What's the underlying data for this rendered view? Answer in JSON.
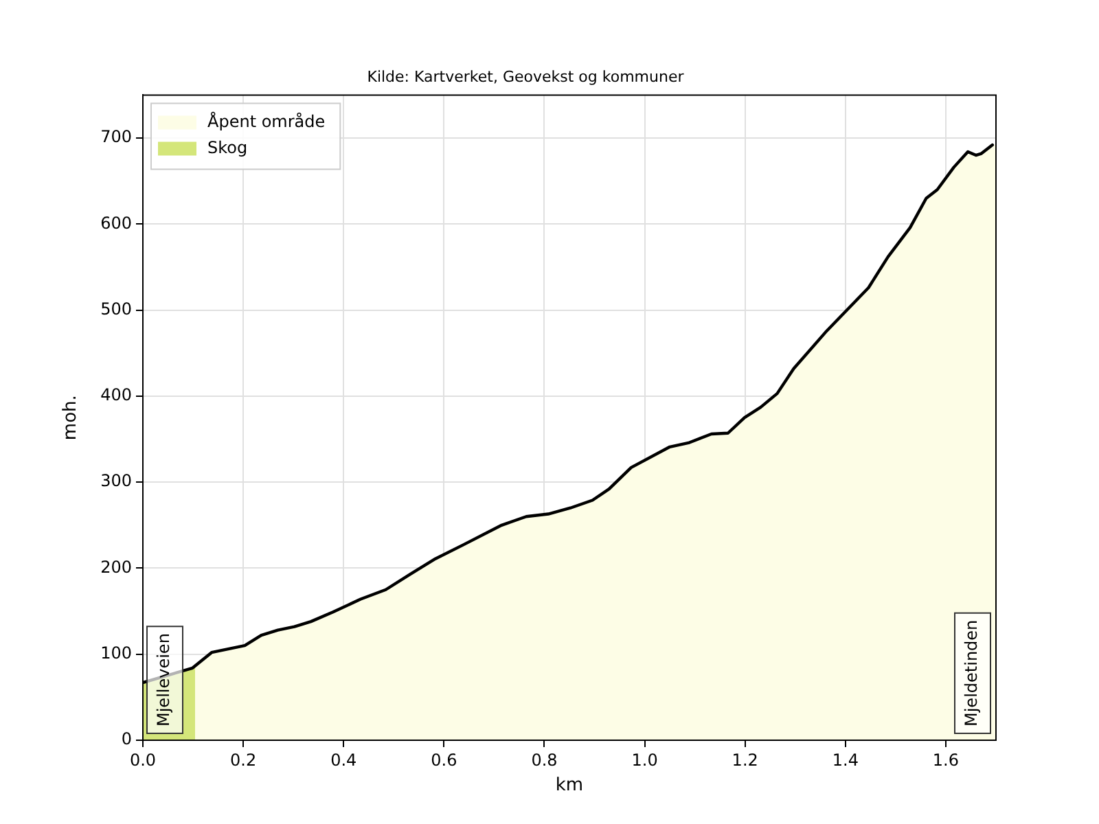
{
  "chart_data": {
    "type": "area",
    "title": "Kilde: Kartverket, Geovekst og kommuner",
    "xlabel": "km",
    "ylabel": "moh.",
    "xlim": [
      0,
      1.7
    ],
    "xticks": [
      {
        "value": 0,
        "label": "0.0"
      },
      0.2,
      0.4,
      0.6,
      0.8,
      {
        "value": 1,
        "label": "1.0"
      },
      1.2,
      1.4,
      1.6
    ],
    "ylim": [
      0,
      750
    ],
    "yticks": [
      0,
      100,
      200,
      300,
      400,
      500,
      600,
      700
    ],
    "grid": true,
    "legend": "top left",
    "series": [
      {
        "name": "Åpent område",
        "color": "#fdfde6",
        "x": [
          0.104,
          0.137,
          0.17,
          0.203,
          0.236,
          0.269,
          0.302,
          0.335,
          0.379,
          0.434,
          0.484,
          0.533,
          0.583,
          0.638,
          0.715,
          0.764,
          0.808,
          0.852,
          0.896,
          0.929,
          0.973,
          1.05,
          1.089,
          1.133,
          1.166,
          1.199,
          1.231,
          1.264,
          1.297,
          1.363,
          1.446,
          1.485,
          1.529,
          1.561,
          1.583,
          1.616,
          1.644,
          1.66,
          1.671,
          1.693,
          1.7
        ],
        "values": [
          86,
          102,
          106,
          110,
          122,
          128,
          132,
          138,
          149,
          164,
          175,
          193,
          211,
          227,
          250,
          260,
          263,
          270,
          279,
          292,
          317,
          341,
          346,
          356,
          357,
          375,
          387,
          403,
          432,
          476,
          526,
          562,
          596,
          630,
          640,
          666,
          684,
          680,
          682,
          692,
          692
        ]
      },
      {
        "name": "Skog",
        "color": "#d4e67a",
        "x": [
          0,
          0.099,
          0.104
        ],
        "values": [
          67,
          84,
          86
        ]
      },
      {
        "type": "line",
        "color": "#000000",
        "x": [
          0,
          0.099,
          0.137,
          0.17,
          0.203,
          0.236,
          0.269,
          0.302,
          0.335,
          0.379,
          0.434,
          0.484,
          0.533,
          0.583,
          0.638,
          0.715,
          0.764,
          0.808,
          0.852,
          0.896,
          0.929,
          0.973,
          1.05,
          1.089,
          1.133,
          1.166,
          1.199,
          1.231,
          1.264,
          1.297,
          1.363,
          1.446,
          1.485,
          1.529,
          1.561,
          1.583,
          1.616,
          1.644,
          1.66,
          1.671,
          1.693
        ],
        "values": [
          67,
          84,
          102,
          106,
          110,
          122,
          128,
          132,
          138,
          149,
          164,
          175,
          193,
          211,
          227,
          250,
          260,
          263,
          270,
          279,
          292,
          317,
          341,
          346,
          356,
          357,
          375,
          387,
          403,
          432,
          476,
          526,
          562,
          596,
          630,
          640,
          666,
          684,
          680,
          682,
          692
        ]
      }
    ],
    "annotations": [
      "Mjelleveien",
      "Mjeldetinden"
    ]
  }
}
